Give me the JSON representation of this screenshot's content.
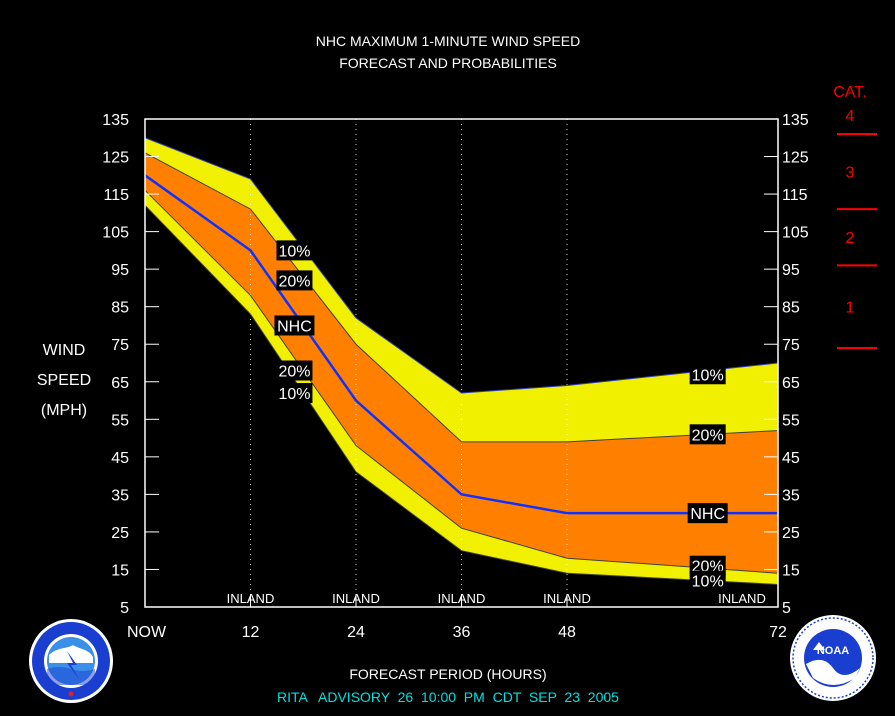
{
  "chart_data": {
    "type": "area",
    "title": "NHC MAXIMUM 1-MINUTE WIND SPEED",
    "subtitle": "FORECAST AND PROBABILITIES",
    "ylabel_lines": [
      "WIND",
      "SPEED",
      "(MPH)"
    ],
    "xlabel": "FORECAST PERIOD (HOURS)",
    "advisory": "RITA   ADVISORY  26  10:00  PM  CDT  SEP  23  2005",
    "ylim": [
      5,
      135
    ],
    "xlim": [
      0,
      72
    ],
    "yticks": [
      135,
      125,
      115,
      105,
      95,
      85,
      75,
      65,
      55,
      45,
      35,
      25,
      15,
      5
    ],
    "xticks": [
      {
        "x": 0,
        "label": "NOW"
      },
      {
        "x": 12,
        "label": "12"
      },
      {
        "x": 24,
        "label": "24"
      },
      {
        "x": 36,
        "label": "36"
      },
      {
        "x": 48,
        "label": "48"
      },
      {
        "x": 72,
        "label": "72"
      }
    ],
    "x": [
      0,
      12,
      24,
      36,
      48,
      72
    ],
    "series": [
      {
        "name": "10%",
        "role": "upper",
        "values": [
          130,
          119,
          82,
          62,
          64,
          70
        ]
      },
      {
        "name": "20%",
        "role": "upper",
        "values": [
          126,
          111,
          75,
          49,
          49,
          52
        ]
      },
      {
        "name": "NHC",
        "role": "forecast",
        "values": [
          120,
          100,
          60,
          35,
          30,
          30
        ]
      },
      {
        "name": "20%",
        "role": "lower",
        "values": [
          116,
          88,
          48,
          26,
          18,
          14
        ]
      },
      {
        "name": "10%",
        "role": "lower",
        "values": [
          112,
          83,
          41,
          20,
          14,
          11
        ]
      }
    ],
    "series_labels": [
      {
        "text": "10%",
        "x": 17,
        "y": 100
      },
      {
        "text": "20%",
        "x": 17,
        "y": 92
      },
      {
        "text": "NHC",
        "x": 17,
        "y": 80
      },
      {
        "text": "20%",
        "x": 17,
        "y": 68
      },
      {
        "text": "10%",
        "x": 17,
        "y": 62
      },
      {
        "text": "10%",
        "x": 64,
        "y": 67
      },
      {
        "text": "20%",
        "x": 64,
        "y": 51
      },
      {
        "text": "NHC",
        "x": 64,
        "y": 30
      },
      {
        "text": "20%",
        "x": 64,
        "y": 16
      },
      {
        "text": "10%",
        "x": 64,
        "y": 12
      }
    ],
    "inland_markers": [
      {
        "x": 12,
        "label": "INLAND"
      },
      {
        "x": 24,
        "label": "INLAND"
      },
      {
        "x": 36,
        "label": "INLAND"
      },
      {
        "x": 48,
        "label": "INLAND"
      },
      {
        "x": 72,
        "label": "INLAND"
      }
    ],
    "category_scale": {
      "title": "CAT.",
      "thresholds": [
        131,
        111,
        96,
        74
      ],
      "categories": [
        {
          "label": "4",
          "y": 136
        },
        {
          "label": "3",
          "y": 121
        },
        {
          "label": "2",
          "y": 103.5
        },
        {
          "label": "1",
          "y": 85
        }
      ]
    },
    "colors": {
      "outer_band": "#f0f000",
      "inner_band": "#ff8000",
      "forecast_line": "#1030ff",
      "category": "#ff0000",
      "advisory": "#00e0e0",
      "frame": "#ffffff"
    }
  }
}
